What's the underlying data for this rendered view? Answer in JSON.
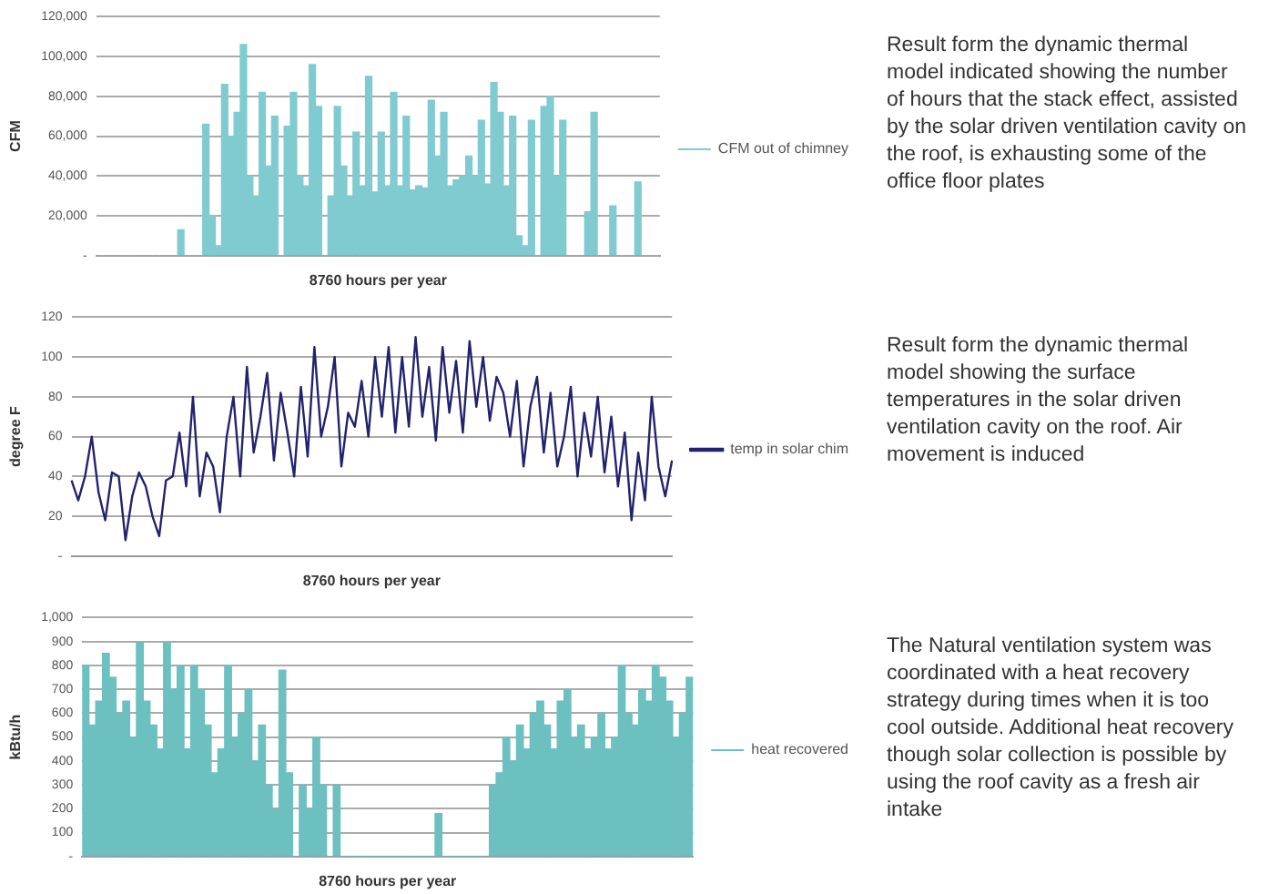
{
  "chart_data": [
    {
      "type": "bar",
      "xlabel": "8760 hours per year",
      "ylabel": "CFM",
      "legend": "right",
      "grid": "y",
      "categories": [
        null,
        null,
        null,
        null,
        null,
        null,
        null,
        null,
        null,
        null,
        null,
        null,
        null,
        null,
        null,
        null,
        null,
        null,
        null,
        null,
        null,
        null,
        null,
        null,
        null,
        null,
        null,
        null,
        null,
        null,
        null,
        null,
        null,
        null,
        null,
        null,
        null,
        null,
        null,
        null,
        null,
        null,
        null,
        null,
        null,
        null,
        null,
        null,
        null,
        null,
        null,
        null,
        null,
        null,
        null,
        null,
        null,
        null,
        null,
        null,
        null,
        null,
        null,
        null,
        null,
        null,
        null,
        null,
        null,
        null,
        null,
        null,
        null,
        null,
        null,
        null,
        null,
        null,
        null,
        null,
        null,
        null,
        null,
        null,
        null,
        null,
        null,
        null,
        null,
        null
      ],
      "series": [
        {
          "name": "CFM out of chimney",
          "color": "#7fcbd0",
          "values": [
            0,
            0,
            0,
            0,
            0,
            0,
            0,
            0,
            0,
            0,
            0,
            0,
            0,
            13000,
            0,
            0,
            0,
            66000,
            20000,
            5000,
            86000,
            60000,
            72000,
            106000,
            40000,
            30000,
            82000,
            45000,
            70000,
            0,
            65000,
            82000,
            40000,
            35000,
            96000,
            75000,
            0,
            30000,
            75000,
            45000,
            30000,
            62000,
            35000,
            90000,
            32000,
            62000,
            35000,
            82000,
            35000,
            70000,
            33000,
            35000,
            34000,
            78000,
            50000,
            72000,
            35000,
            38000,
            40000,
            50000,
            40000,
            68000,
            36000,
            87000,
            72000,
            35000,
            70000,
            10000,
            5000,
            68000,
            0,
            75000,
            80000,
            40000,
            68000,
            0,
            0,
            0,
            22000,
            72000,
            0,
            0,
            25000,
            0,
            0,
            0,
            37000,
            0,
            0,
            0
          ]
        }
      ],
      "ylim": [
        0,
        120000
      ],
      "yticks": [
        {
          "value": 0,
          "label": "-"
        },
        {
          "value": 20000,
          "label": "20,000"
        },
        {
          "value": 40000,
          "label": "40,000"
        },
        {
          "value": 60000,
          "label": "60,000"
        },
        {
          "value": 80000,
          "label": "80,000"
        },
        {
          "value": 100000,
          "label": "100,000"
        },
        {
          "value": 120000,
          "label": "120,000"
        }
      ],
      "annotations": [
        "Result form the dynamic thermal model indicated showing the number of hours that the stack effect, assisted by the solar driven ventilation cavity on the roof, is exhausting some of the office floor plates"
      ]
    },
    {
      "type": "line",
      "xlabel": "8760 hours per year",
      "ylabel": "degree F",
      "legend": "right",
      "grid": "y",
      "categories": [
        null,
        null,
        null,
        null,
        null,
        null,
        null,
        null,
        null,
        null,
        null,
        null,
        null,
        null,
        null,
        null,
        null,
        null,
        null,
        null,
        null,
        null,
        null,
        null,
        null,
        null,
        null,
        null,
        null,
        null,
        null,
        null,
        null,
        null,
        null,
        null,
        null,
        null,
        null,
        null,
        null,
        null,
        null,
        null,
        null,
        null,
        null,
        null,
        null,
        null,
        null,
        null,
        null,
        null,
        null,
        null,
        null,
        null,
        null,
        null,
        null,
        null,
        null,
        null,
        null,
        null,
        null,
        null,
        null,
        null,
        null,
        null,
        null,
        null,
        null,
        null,
        null,
        null,
        null,
        null,
        null,
        null,
        null,
        null,
        null,
        null,
        null,
        null,
        null,
        null
      ],
      "series": [
        {
          "name": "temp in solar chim",
          "color": "#22226e",
          "values": [
            38,
            28,
            40,
            60,
            32,
            18,
            42,
            40,
            8,
            30,
            42,
            35,
            20,
            10,
            38,
            40,
            62,
            35,
            80,
            30,
            52,
            45,
            22,
            60,
            80,
            40,
            95,
            52,
            70,
            92,
            48,
            82,
            62,
            40,
            85,
            50,
            105,
            60,
            75,
            100,
            45,
            72,
            65,
            88,
            60,
            100,
            70,
            105,
            62,
            100,
            65,
            110,
            70,
            95,
            58,
            105,
            72,
            98,
            62,
            108,
            75,
            100,
            68,
            90,
            82,
            60,
            88,
            45,
            75,
            90,
            52,
            82,
            45,
            60,
            85,
            40,
            72,
            50,
            80,
            42,
            70,
            35,
            62,
            18,
            52,
            28,
            80,
            45,
            30,
            48
          ]
        }
      ],
      "ylim": [
        0,
        120
      ],
      "yticks": [
        {
          "value": 0,
          "label": "-"
        },
        20,
        40,
        60,
        80,
        100,
        120
      ],
      "annotations": [
        "Result form the dynamic thermal model showing the surface temperatures in the solar driven ventilation cavity on the roof. Air movement is induced"
      ]
    },
    {
      "type": "bar",
      "xlabel": "8760 hours per year",
      "ylabel": "kBtu/h",
      "legend": "right",
      "grid": "y",
      "categories": [
        null,
        null,
        null,
        null,
        null,
        null,
        null,
        null,
        null,
        null,
        null,
        null,
        null,
        null,
        null,
        null,
        null,
        null,
        null,
        null,
        null,
        null,
        null,
        null,
        null,
        null,
        null,
        null,
        null,
        null,
        null,
        null,
        null,
        null,
        null,
        null,
        null,
        null,
        null,
        null,
        null,
        null,
        null,
        null,
        null,
        null,
        null,
        null,
        null,
        null,
        null,
        null,
        null,
        null,
        null,
        null,
        null,
        null,
        null,
        null,
        null,
        null,
        null,
        null,
        null,
        null,
        null,
        null,
        null,
        null,
        null,
        null,
        null,
        null,
        null,
        null,
        null,
        null,
        null,
        null,
        null,
        null,
        null,
        null,
        null,
        null,
        null,
        null,
        null,
        null
      ],
      "series": [
        {
          "name": "heat recovered",
          "color": "#6cc0c0",
          "values": [
            800,
            550,
            650,
            850,
            750,
            600,
            650,
            500,
            900,
            650,
            550,
            450,
            900,
            700,
            800,
            450,
            800,
            700,
            550,
            350,
            450,
            800,
            500,
            600,
            700,
            400,
            550,
            300,
            200,
            780,
            350,
            0,
            300,
            200,
            500,
            300,
            0,
            300,
            0,
            0,
            0,
            0,
            0,
            0,
            0,
            0,
            0,
            0,
            0,
            0,
            0,
            0,
            180,
            0,
            0,
            0,
            0,
            0,
            0,
            0,
            300,
            350,
            500,
            400,
            550,
            450,
            600,
            650,
            550,
            450,
            650,
            700,
            500,
            550,
            450,
            500,
            600,
            450,
            500,
            800,
            600,
            550,
            700,
            650,
            800,
            750,
            650,
            500,
            600,
            750
          ]
        }
      ],
      "ylim": [
        0,
        1000
      ],
      "yticks": [
        {
          "value": 0,
          "label": "-"
        },
        100,
        200,
        300,
        400,
        500,
        600,
        700,
        800,
        900,
        {
          "value": 1000,
          "label": "1,000"
        }
      ],
      "annotations": [
        "The Natural ventilation system was coordinated with a heat recovery strategy during times when it is too cool outside. Additional heat recovery though solar collection is possible by using the roof cavity as a fresh air intake"
      ]
    }
  ]
}
